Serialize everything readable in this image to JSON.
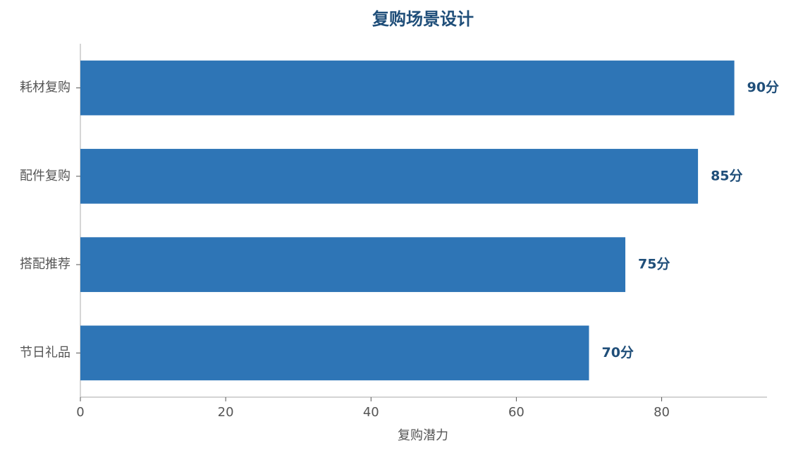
{
  "chart_data": {
    "type": "hbar",
    "title": "复购场景设计",
    "x_label": "复购潜力",
    "categories": [
      "耗材复购",
      "配件复购",
      "搭配推荐",
      "节日礼品"
    ],
    "values": [
      90,
      85,
      75,
      70
    ],
    "value_labels": [
      "90分",
      "85分",
      "75分",
      "70分"
    ],
    "color": "#2e75b6",
    "xlim": [
      0,
      94.5
    ],
    "xticks": [
      0,
      20,
      40,
      60,
      80
    ]
  }
}
